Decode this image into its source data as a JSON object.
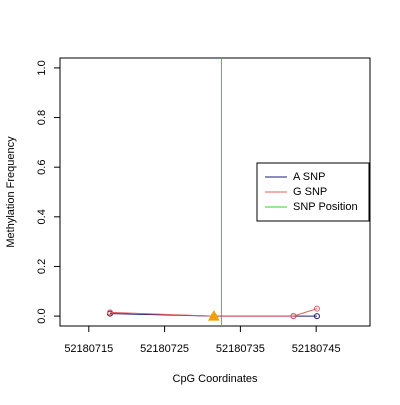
{
  "chart_data": {
    "type": "line",
    "x_label": "CpG Coordinates",
    "y_label": "Methylation Frequency",
    "x": [
      52180717.8,
      52180731.5,
      52180742,
      52180745.1
    ],
    "series": [
      {
        "name": "A SNP",
        "color": "#1a1a80",
        "values": [
          0.01,
          0.0,
          0.0,
          0.0
        ]
      },
      {
        "name": "G SNP",
        "color": "#e06060",
        "values": [
          0.015,
          0.0,
          0.0,
          0.03
        ]
      }
    ],
    "snp_position": {
      "name": "SNP Position",
      "color": "#33cc33",
      "x": 52180732.5
    },
    "snp_marker": {
      "x": 52180731.5,
      "y": 0.0,
      "color": "#f0a000"
    },
    "xlim": [
      52180711.2,
      52180752.1
    ],
    "ylim": [
      -0.04,
      1.04
    ],
    "xticks": [
      52180715,
      52180725,
      52180735,
      52180745
    ],
    "yticks": [
      {
        "value": 0,
        "label": "0.0"
      },
      {
        "value": 0.2,
        "label": "0.2"
      },
      {
        "value": 0.4,
        "label": "0.4"
      },
      {
        "value": 0.6,
        "label": "0.6"
      },
      {
        "value": 0.8,
        "label": "0.8"
      },
      {
        "value": 1,
        "label": "1.0"
      }
    ],
    "legend": "right"
  }
}
